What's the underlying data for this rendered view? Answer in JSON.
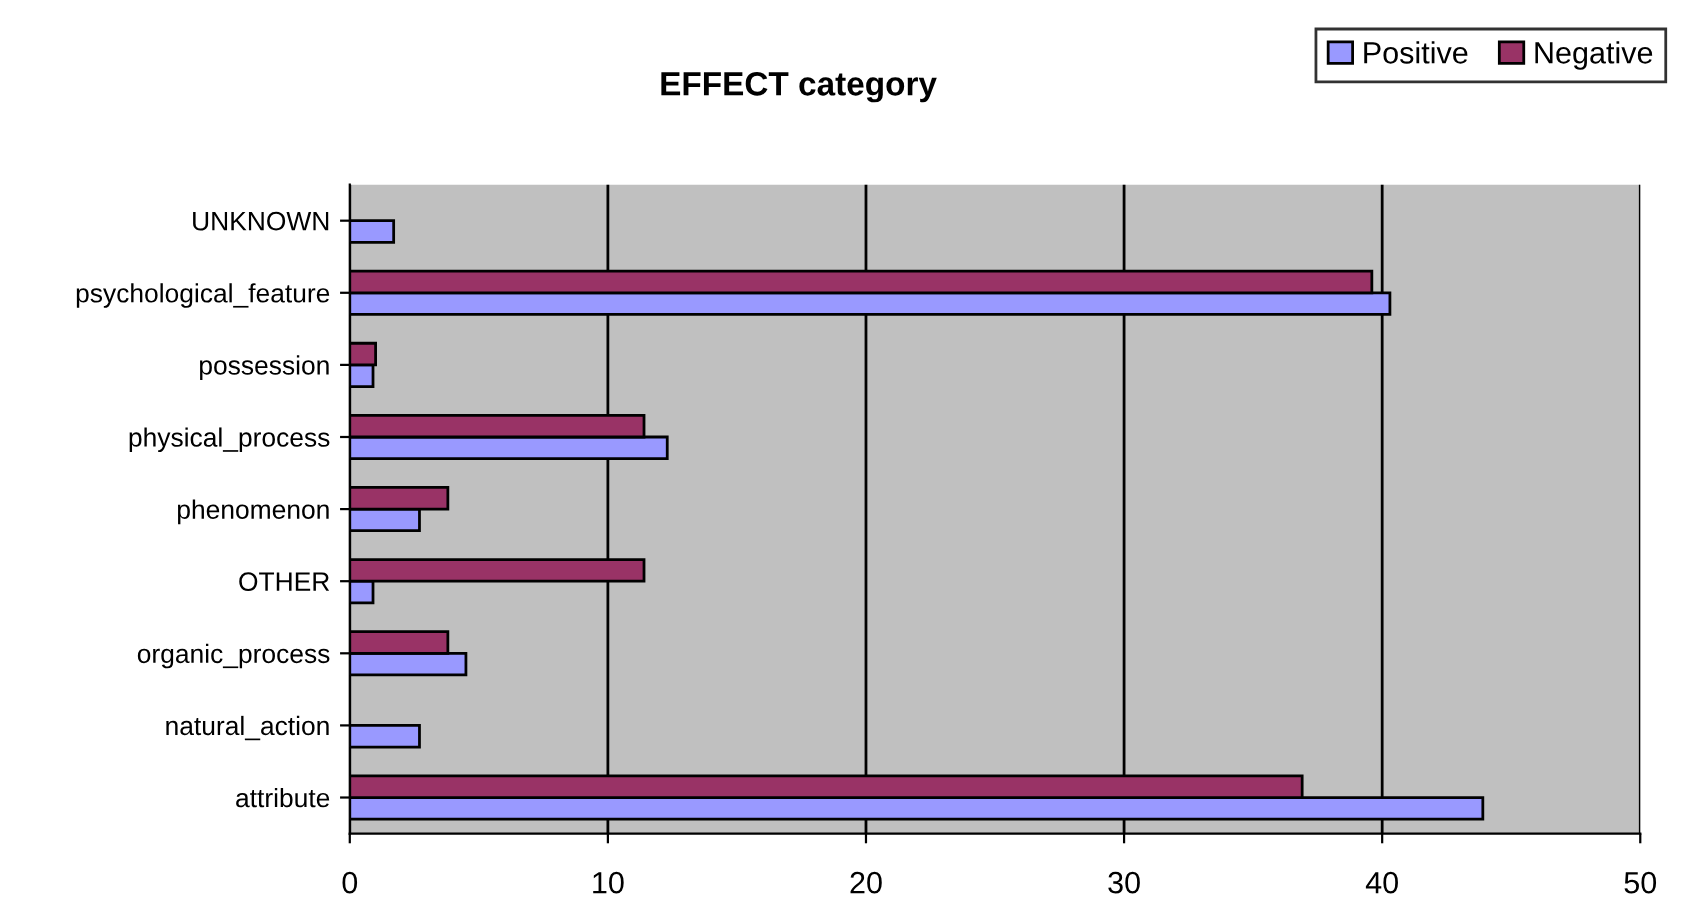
{
  "chart_data": {
    "type": "bar",
    "orientation": "horizontal",
    "title": "EFFECT category",
    "categories": [
      "UNKNOWN",
      "psychological_feature",
      "possession",
      "physical_process",
      "phenomenon",
      "OTHER",
      "organic_process",
      "natural_action",
      "attribute"
    ],
    "series": [
      {
        "name": "Positive",
        "color": "#9999ff",
        "values": [
          1.7,
          40.3,
          0.9,
          12.3,
          2.7,
          0.9,
          4.5,
          2.7,
          43.9
        ]
      },
      {
        "name": "Negative",
        "color": "#993366",
        "values": [
          null,
          39.6,
          1.0,
          11.4,
          3.8,
          11.4,
          3.8,
          null,
          36.9
        ]
      }
    ],
    "xlim": [
      0,
      50
    ],
    "xticks": [
      0,
      10,
      20,
      30,
      40,
      50
    ],
    "grid": "x",
    "legend": "top right"
  }
}
